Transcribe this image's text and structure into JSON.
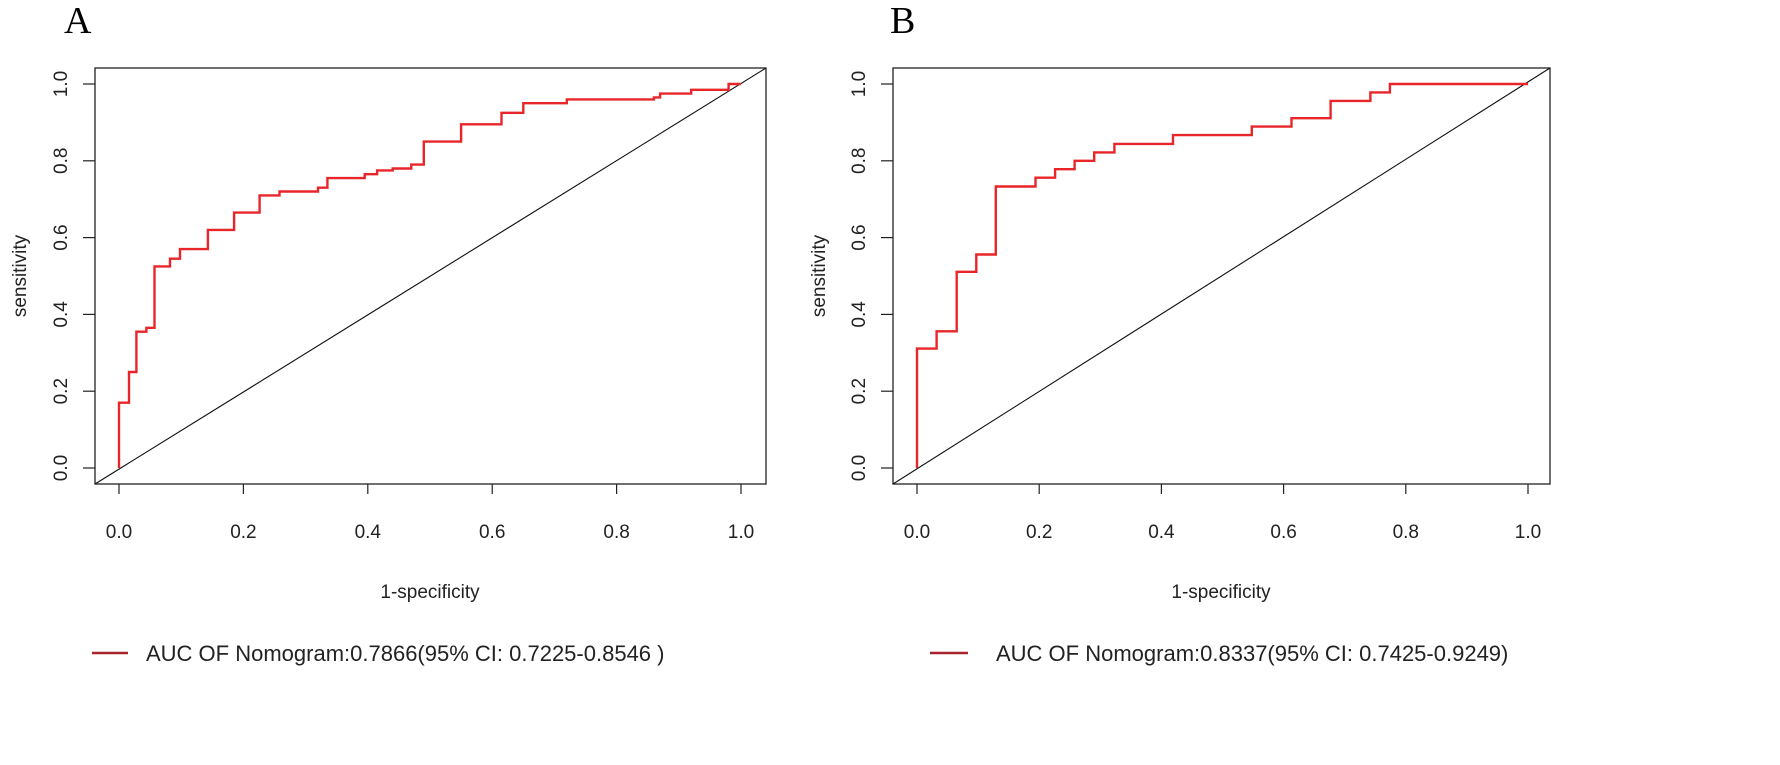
{
  "chart_data": [
    {
      "panel": "A",
      "type": "line",
      "xlabel": "1-specificity",
      "ylabel": "sensitivity",
      "xlim": [
        0,
        1
      ],
      "ylim": [
        0,
        1
      ],
      "x_ticks": [
        "0.0",
        "0.2",
        "0.4",
        "0.6",
        "0.8",
        "1.0"
      ],
      "y_ticks": [
        "0.0",
        "0.2",
        "0.4",
        "0.6",
        "0.8",
        "1.0"
      ],
      "legend": "AUC OF Nomogram:0.7866(95% CI: 0.7225-0.8546 )",
      "line_color": "#e8262a",
      "legend_color": "#a8232f",
      "series": [
        {
          "name": "Nomogram ROC",
          "x": [
            0.0,
            0.0,
            0.016,
            0.016,
            0.028,
            0.028,
            0.044,
            0.044,
            0.057,
            0.057,
            0.082,
            0.082,
            0.098,
            0.098,
            0.143,
            0.143,
            0.185,
            0.185,
            0.226,
            0.226,
            0.258,
            0.258,
            0.32,
            0.32,
            0.335,
            0.335,
            0.395,
            0.395,
            0.415,
            0.415,
            0.44,
            0.44,
            0.47,
            0.47,
            0.49,
            0.49,
            0.55,
            0.55,
            0.615,
            0.615,
            0.65,
            0.65,
            0.72,
            0.72,
            0.86,
            0.86,
            0.87,
            0.87,
            0.92,
            0.92,
            0.98,
            0.98,
            1.0,
            1.0
          ],
          "y": [
            0.0,
            0.17,
            0.17,
            0.25,
            0.25,
            0.355,
            0.355,
            0.365,
            0.365,
            0.525,
            0.525,
            0.545,
            0.545,
            0.57,
            0.57,
            0.62,
            0.62,
            0.665,
            0.665,
            0.71,
            0.71,
            0.72,
            0.72,
            0.73,
            0.73,
            0.755,
            0.755,
            0.765,
            0.765,
            0.775,
            0.775,
            0.78,
            0.78,
            0.79,
            0.79,
            0.85,
            0.85,
            0.895,
            0.895,
            0.925,
            0.925,
            0.95,
            0.95,
            0.96,
            0.96,
            0.965,
            0.965,
            0.975,
            0.975,
            0.985,
            0.985,
            1.0,
            1.0,
            1.0
          ]
        },
        {
          "name": "Reference diagonal",
          "x": [
            0,
            1
          ],
          "y": [
            0,
            1
          ]
        }
      ]
    },
    {
      "panel": "B",
      "type": "line",
      "xlabel": "1-specificity",
      "ylabel": "sensitivity",
      "xlim": [
        0,
        1
      ],
      "ylim": [
        0,
        1
      ],
      "x_ticks": [
        "0.0",
        "0.2",
        "0.4",
        "0.6",
        "0.8",
        "1.0"
      ],
      "y_ticks": [
        "0.0",
        "0.2",
        "0.4",
        "0.6",
        "0.8",
        "1.0"
      ],
      "legend": "AUC OF Nomogram:0.8337(95% CI: 0.7425-0.9249)",
      "line_color": "#e8262a",
      "legend_color": "#a8232f",
      "series": [
        {
          "name": "Nomogram ROC",
          "x": [
            0.0,
            0.0,
            0.032,
            0.032,
            0.065,
            0.065,
            0.097,
            0.097,
            0.129,
            0.129,
            0.194,
            0.194,
            0.226,
            0.226,
            0.258,
            0.258,
            0.29,
            0.29,
            0.323,
            0.323,
            0.419,
            0.419,
            0.548,
            0.548,
            0.613,
            0.613,
            0.677,
            0.677,
            0.742,
            0.742,
            0.774,
            0.774,
            1.0
          ],
          "y": [
            0.0,
            0.311,
            0.311,
            0.356,
            0.356,
            0.511,
            0.511,
            0.556,
            0.556,
            0.733,
            0.733,
            0.756,
            0.756,
            0.778,
            0.778,
            0.8,
            0.8,
            0.822,
            0.822,
            0.844,
            0.844,
            0.867,
            0.867,
            0.889,
            0.889,
            0.911,
            0.911,
            0.956,
            0.956,
            0.978,
            0.978,
            1.0,
            1.0
          ]
        },
        {
          "name": "Reference diagonal",
          "x": [
            0,
            1
          ],
          "y": [
            0,
            1
          ]
        }
      ]
    }
  ]
}
